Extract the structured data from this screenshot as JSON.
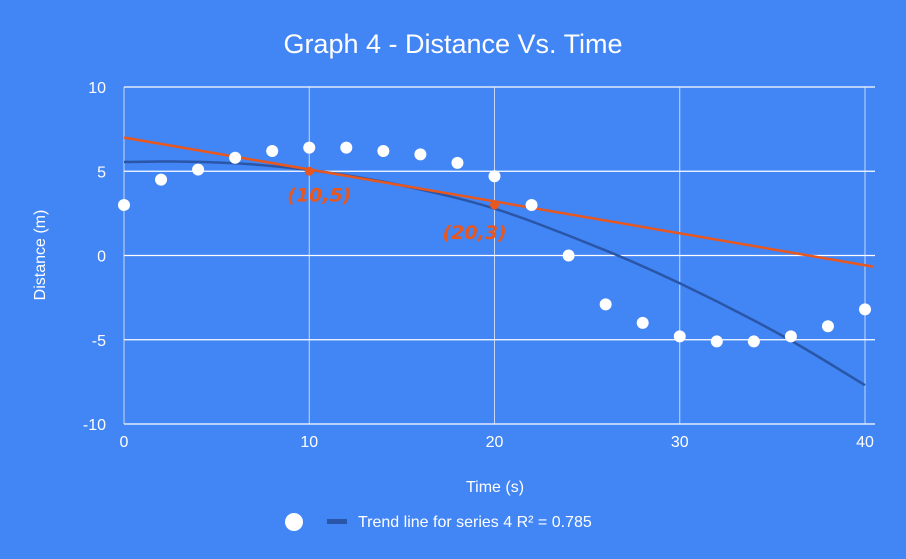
{
  "chart_data": {
    "type": "scatter",
    "title": "Graph 4  - Distance Vs. Time",
    "xlabel": "Time (s)",
    "ylabel": "Distance (m)",
    "xlim": [
      0,
      40
    ],
    "ylim": [
      -10,
      10
    ],
    "x_ticks": [
      "0",
      "10",
      "20",
      "30",
      "40"
    ],
    "y_ticks": [
      "10",
      "5",
      "0",
      "-5",
      "-10"
    ],
    "grid": true,
    "legend_position": "bottom",
    "series": [
      {
        "x": [
          0,
          2,
          4,
          6,
          8,
          10,
          12,
          14,
          16,
          18,
          20,
          22,
          24,
          26,
          28,
          30,
          32,
          34,
          36,
          38,
          40
        ],
        "y": [
          3,
          4.5,
          5.1,
          5.8,
          6.2,
          6.4,
          6.4,
          6.2,
          6.0,
          5.5,
          4.7,
          3.0,
          0,
          -2.9,
          -4.0,
          -4.8,
          -5.1,
          -5.1,
          -4.8,
          -4.2,
          -3.2
        ],
        "color": "#ffffff"
      }
    ],
    "trendline": {
      "label": "Trend line for series 4 R² = 0.785",
      "type": "polynomial",
      "color": "#2a56a8",
      "points": [
        [
          0,
          5.55
        ],
        [
          4,
          5.6
        ],
        [
          8,
          5.35
        ],
        [
          12,
          4.8
        ],
        [
          16,
          3.95
        ],
        [
          20,
          2.85
        ],
        [
          24,
          1.2
        ],
        [
          28,
          -0.6
        ],
        [
          32,
          -2.7
        ],
        [
          36,
          -5.0
        ],
        [
          40,
          -7.7
        ]
      ]
    },
    "annotations": [
      {
        "label": "(10,5)",
        "x": 10,
        "y": 5
      },
      {
        "label": "(20,3)",
        "x": 20,
        "y": 3
      }
    ],
    "drawn_line": {
      "color": "#e8571e",
      "from": [
        0,
        7.0
      ],
      "to": [
        40,
        -0.6
      ]
    }
  }
}
